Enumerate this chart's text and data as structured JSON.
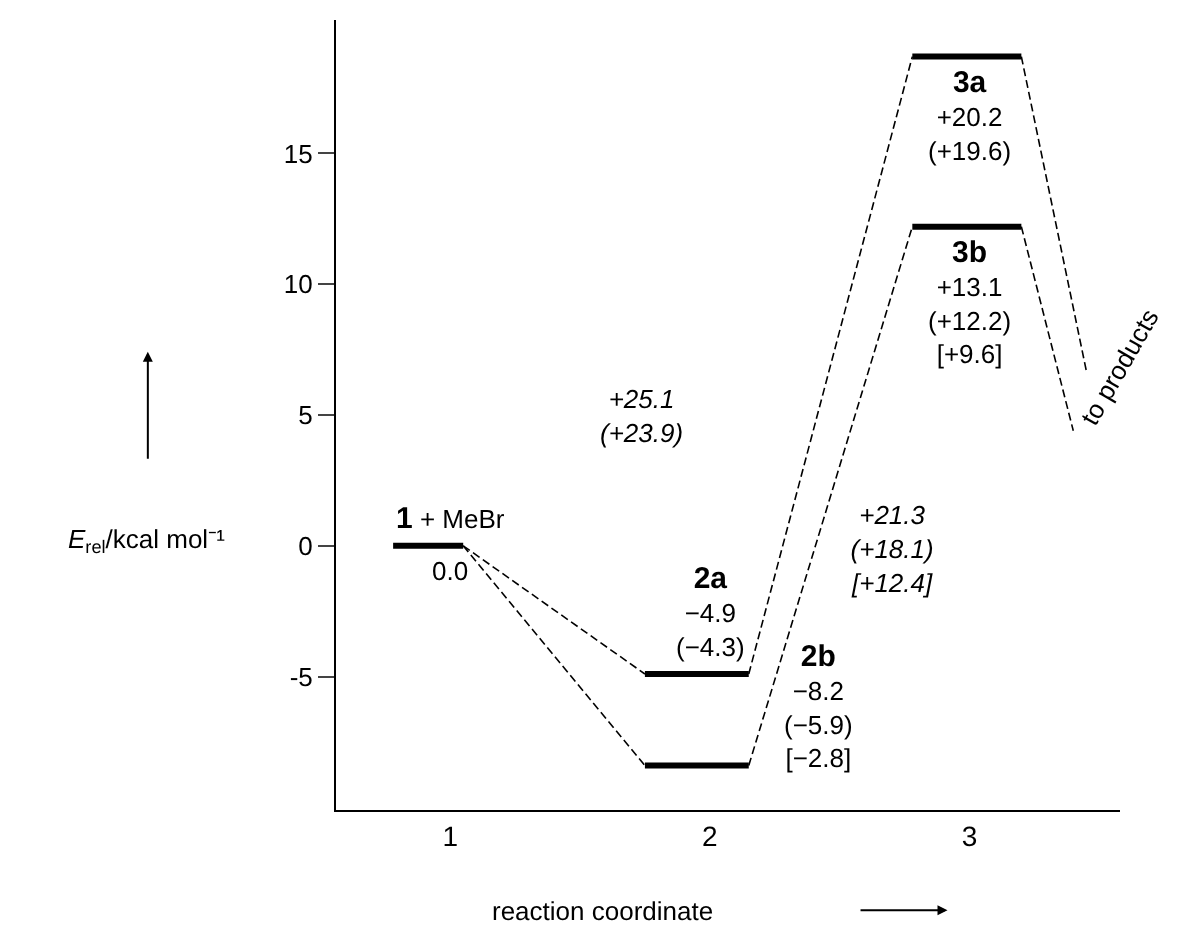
{
  "chart_data": {
    "type": "line",
    "xlabel": "reaction coordinate",
    "ylabel": "E$_{rel}$/kcal mol⁻¹",
    "xlim": [
      0.56,
      3.58
    ],
    "xticks": [
      1,
      2,
      3
    ],
    "ylim": [
      -10.1,
      20.1
    ],
    "yticks": [
      -5,
      0,
      5,
      10,
      15
    ],
    "marker": "none",
    "series": [
      {
        "color": "#000000",
        "line_style": "solid",
        "x": [
          0.78,
          1.05
        ],
        "values": [
          0,
          0
        ]
      },
      {
        "color": "#000000",
        "line_style": "solid",
        "x": [
          1.75,
          2.15
        ],
        "values": [
          -4.9,
          -4.9
        ]
      },
      {
        "color": "#000000",
        "line_style": "solid",
        "x": [
          1.75,
          2.15
        ],
        "values": [
          -8.4,
          -8.4
        ]
      },
      {
        "color": "#000000",
        "line_style": "solid",
        "x": [
          2.78,
          3.2
        ],
        "values": [
          18.7,
          18.7
        ]
      },
      {
        "color": "#000000",
        "line_style": "solid",
        "x": [
          2.78,
          3.2
        ],
        "values": [
          12.2,
          12.2
        ]
      },
      {
        "color": "#000000",
        "line_style": "dashed",
        "x": [
          1.05,
          1.75
        ],
        "values": [
          0,
          -4.9
        ]
      },
      {
        "color": "#000000",
        "line_style": "dashed",
        "x": [
          1.05,
          1.75
        ],
        "values": [
          0,
          -8.4
        ]
      },
      {
        "color": "#000000",
        "line_style": "dashed",
        "x": [
          2.15,
          2.78
        ],
        "values": [
          -4.9,
          18.7
        ]
      },
      {
        "color": "#000000",
        "line_style": "dashed",
        "x": [
          2.15,
          2.78
        ],
        "values": [
          -8.4,
          12.2
        ]
      },
      {
        "color": "#000000",
        "line_style": "dashed",
        "x": [
          3.2,
          3.45
        ],
        "values": [
          18.7,
          6.7
        ]
      },
      {
        "color": "#000000",
        "line_style": "dashed",
        "x": [
          3.2,
          3.4
        ],
        "values": [
          12.2,
          4.4
        ]
      }
    ],
    "annotations": [
      {
        "text": "1 + MeBr",
        "x": 1,
        "y": 0
      },
      {
        "text": "0.0",
        "x": 1,
        "y": 0
      },
      {
        "text": "2a\n−4.9\n(−4.3)",
        "x": 2,
        "y": -4.9
      },
      "2b\n−8.2\n(−5.9)\n[−2.8]",
      {
        "text": "3a\n+20.2\n(+19.6)",
        "x": 3,
        "y": 18.7
      },
      {
        "text": "3b\n+13.1\n(+12.2)\n[+9.6]",
        "x": 3,
        "y": 12.2
      },
      "+25.1\n(+23.9)",
      "+21.3\n(+18.1)\n[+12.4]",
      "to products"
    ]
  }
}
